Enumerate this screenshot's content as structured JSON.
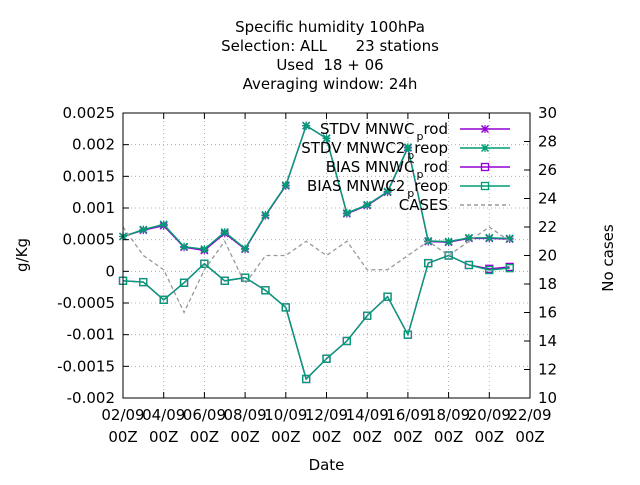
{
  "chart_data": {
    "type": "line",
    "title_lines": [
      "Specific humidity 100hPa",
      "Selection: ALL      23 stations",
      "Used  18 + 06",
      "Averaging window: 24h"
    ],
    "xlabel": "Date",
    "ylabel": "g/Kg",
    "y2label": "No cases",
    "ylim": [
      -0.002,
      0.0025
    ],
    "y2lim": [
      10,
      30
    ],
    "grid": true,
    "legend_position": "top-right",
    "x_tick_labels": [
      [
        "02/09",
        "00Z"
      ],
      [
        "04/09",
        "00Z"
      ],
      [
        "06/09",
        "00Z"
      ],
      [
        "08/09",
        "00Z"
      ],
      [
        "10/09",
        "00Z"
      ],
      [
        "12/09",
        "00Z"
      ],
      [
        "14/09",
        "00Z"
      ],
      [
        "16/09",
        "00Z"
      ],
      [
        "18/09",
        "00Z"
      ],
      [
        "20/09",
        "00Z"
      ],
      [
        "22/09",
        "00Z"
      ]
    ],
    "y_tick_labels": [
      "-0.002",
      "-0.0015",
      "-0.001",
      "-0.0005",
      "0",
      "0.0005",
      "0.001",
      "0.0015",
      "0.002",
      "0.0025"
    ],
    "y2_tick_labels": [
      "10",
      "12",
      "14",
      "16",
      "18",
      "20",
      "22",
      "24",
      "26",
      "28",
      "30"
    ],
    "x_days": [
      2,
      3,
      4,
      5,
      6,
      7,
      8,
      9,
      10,
      11,
      12,
      13,
      14,
      15,
      16,
      17,
      18,
      19,
      20,
      21
    ],
    "series": [
      {
        "name": "STDV MNWC_prod",
        "legend_main": "STDV MNWC",
        "legend_sub": "p",
        "legend_tail": "rod",
        "axis": "y",
        "color": "#9400d3",
        "marker": "x",
        "values": [
          0.00055,
          0.00065,
          0.00072,
          0.00038,
          0.00033,
          0.0006,
          0.00035,
          0.00088,
          0.00135,
          0.0023,
          0.0021,
          0.00091,
          0.00104,
          0.00125,
          0.00195,
          0.00047,
          0.00046,
          0.00052,
          0.00052,
          0.00051
        ]
      },
      {
        "name": "STDV MNWC2_preop",
        "legend_main": "STDV MNWC2",
        "legend_sub": "p",
        "legend_tail": "reop",
        "axis": "y",
        "color": "#009e73",
        "marker": "x",
        "values": [
          0.00055,
          0.00066,
          0.00074,
          0.00039,
          0.00035,
          0.00062,
          0.00036,
          0.00089,
          0.00136,
          0.0023,
          0.0021,
          0.00092,
          0.00105,
          0.00126,
          0.00196,
          0.00048,
          0.00047,
          0.00053,
          0.00053,
          0.00052
        ]
      },
      {
        "name": "BIAS MNWC_prod",
        "legend_main": "BIAS MNWC",
        "legend_sub": "p",
        "legend_tail": "rod",
        "axis": "y",
        "color": "#9400d3",
        "marker": "square",
        "values": [
          -0.00015,
          -0.00017,
          -0.00045,
          -0.00018,
          0.00012,
          -0.00015,
          -0.0001,
          -0.0003,
          -0.00057,
          -0.0017,
          -0.00138,
          -0.0011,
          -0.0007,
          -0.0004,
          -0.001,
          0.00013,
          0.00025,
          0.0001,
          4e-05,
          7e-05
        ]
      },
      {
        "name": "BIAS MNWC2_preop",
        "legend_main": "BIAS MNWC2",
        "legend_sub": "p",
        "legend_tail": "reop",
        "axis": "y",
        "color": "#009e73",
        "marker": "square",
        "values": [
          -0.00015,
          -0.00017,
          -0.00045,
          -0.00018,
          0.00012,
          -0.00015,
          -0.0001,
          -0.0003,
          -0.00057,
          -0.0017,
          -0.00138,
          -0.0011,
          -0.0007,
          -0.0004,
          -0.001,
          0.00013,
          0.00025,
          0.0001,
          2e-05,
          5e-05
        ]
      },
      {
        "name": "CASES",
        "legend_main": "CASES",
        "legend_sub": "",
        "legend_tail": "",
        "axis": "y2",
        "color": "#999999",
        "marker": "none",
        "dashed": true,
        "values": [
          22,
          20,
          19,
          16,
          19,
          21,
          18,
          20,
          20,
          21,
          20,
          21,
          19,
          19,
          20,
          21,
          20,
          21,
          22,
          21
        ]
      }
    ]
  }
}
